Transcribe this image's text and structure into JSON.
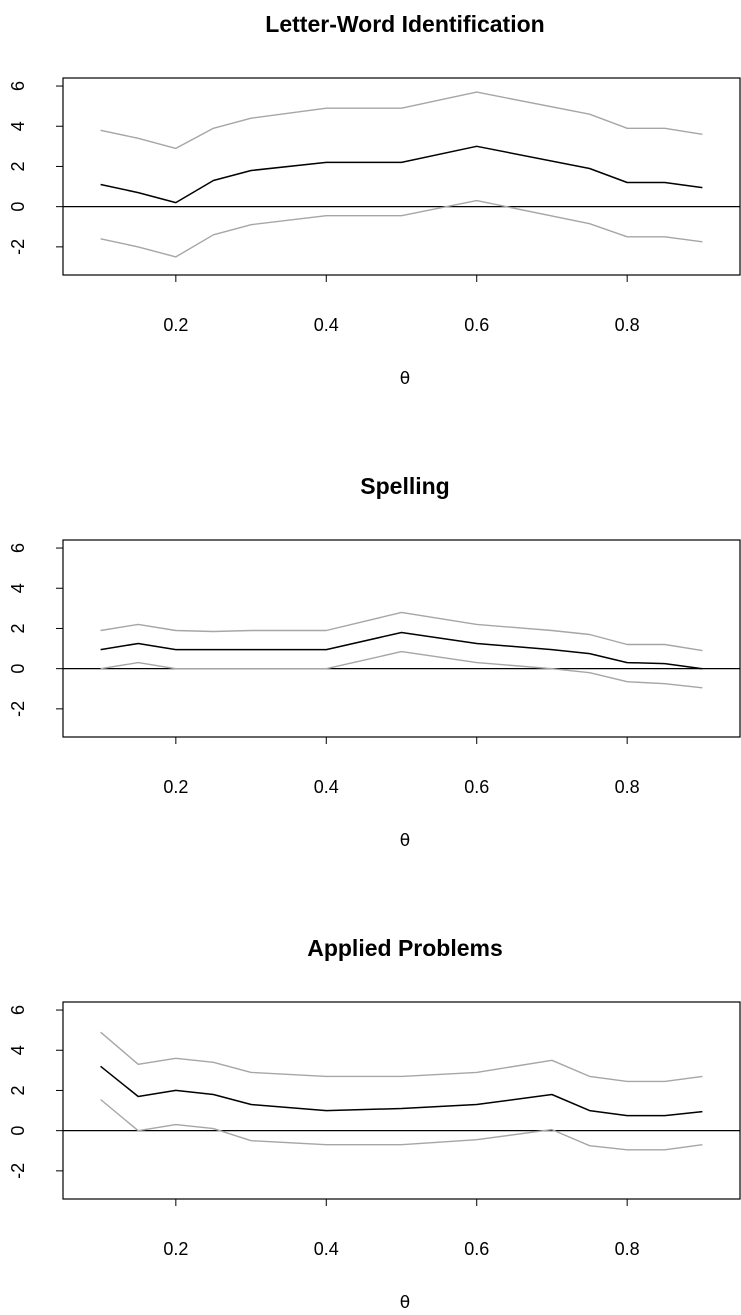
{
  "colors": {
    "estimate": "#000000",
    "band": "#a6a6a6",
    "zero_line": "#000000",
    "frame": "#000000"
  },
  "chart_data": [
    {
      "type": "line",
      "title": "Letter-Word Identification",
      "xlabel": "θ",
      "ylabel": "",
      "xlim": [
        0.05,
        0.95
      ],
      "ylim": [
        -3.4,
        6.4
      ],
      "xticks": [
        0.2,
        0.4,
        0.6,
        0.8
      ],
      "xtick_labels": [
        "0.2",
        "0.4",
        "0.6",
        "0.8"
      ],
      "yticks": [
        -2,
        0,
        2,
        4,
        6
      ],
      "ytick_labels": [
        "-2",
        "0",
        "2",
        "4",
        "6"
      ],
      "hline": 0,
      "x": [
        0.1,
        0.15,
        0.2,
        0.25,
        0.3,
        0.4,
        0.5,
        0.6,
        0.75,
        0.8,
        0.85,
        0.9
      ],
      "series": [
        {
          "role": "upper",
          "values": [
            3.8,
            3.4,
            2.9,
            3.9,
            4.4,
            4.9,
            4.9,
            5.7,
            4.6,
            3.9,
            3.9,
            3.6
          ]
        },
        {
          "role": "estimate",
          "values": [
            1.1,
            0.7,
            0.2,
            1.3,
            1.8,
            2.2,
            2.2,
            3.0,
            1.9,
            1.2,
            1.2,
            0.95
          ]
        },
        {
          "role": "lower",
          "values": [
            -1.6,
            -2.0,
            -2.5,
            -1.4,
            -0.9,
            -0.45,
            -0.45,
            0.3,
            -0.85,
            -1.5,
            -1.5,
            -1.75
          ]
        }
      ]
    },
    {
      "type": "line",
      "title": "Spelling",
      "xlabel": "θ",
      "ylabel": "",
      "xlim": [
        0.05,
        0.95
      ],
      "ylim": [
        -3.4,
        6.4
      ],
      "xticks": [
        0.2,
        0.4,
        0.6,
        0.8
      ],
      "xtick_labels": [
        "0.2",
        "0.4",
        "0.6",
        "0.8"
      ],
      "yticks": [
        -2,
        0,
        2,
        4,
        6
      ],
      "ytick_labels": [
        "-2",
        "0",
        "2",
        "4",
        "6"
      ],
      "hline": 0,
      "x": [
        0.1,
        0.15,
        0.2,
        0.25,
        0.3,
        0.4,
        0.5,
        0.6,
        0.7,
        0.75,
        0.8,
        0.85,
        0.9
      ],
      "series": [
        {
          "role": "upper",
          "values": [
            1.9,
            2.2,
            1.9,
            1.85,
            1.9,
            1.9,
            2.8,
            2.2,
            1.9,
            1.7,
            1.2,
            1.2,
            0.9
          ]
        },
        {
          "role": "estimate",
          "values": [
            0.95,
            1.25,
            0.95,
            0.95,
            0.95,
            0.95,
            1.8,
            1.25,
            0.95,
            0.75,
            0.3,
            0.25,
            0.0
          ]
        },
        {
          "role": "lower",
          "values": [
            0.0,
            0.3,
            0.0,
            0.0,
            0.0,
            0.0,
            0.85,
            0.3,
            0.0,
            -0.2,
            -0.65,
            -0.75,
            -0.95
          ]
        }
      ]
    },
    {
      "type": "line",
      "title": "Applied Problems",
      "xlabel": "θ",
      "ylabel": "",
      "xlim": [
        0.05,
        0.95
      ],
      "ylim": [
        -3.4,
        6.4
      ],
      "xticks": [
        0.2,
        0.4,
        0.6,
        0.8
      ],
      "xtick_labels": [
        "0.2",
        "0.4",
        "0.6",
        "0.8"
      ],
      "yticks": [
        -2,
        0,
        2,
        4,
        6
      ],
      "ytick_labels": [
        "-2",
        "0",
        "2",
        "4",
        "6"
      ],
      "hline": 0,
      "x": [
        0.1,
        0.15,
        0.2,
        0.25,
        0.3,
        0.4,
        0.5,
        0.6,
        0.7,
        0.75,
        0.8,
        0.85,
        0.9
      ],
      "series": [
        {
          "role": "upper",
          "values": [
            4.9,
            3.3,
            3.6,
            3.4,
            2.9,
            2.7,
            2.7,
            2.9,
            3.5,
            2.7,
            2.45,
            2.45,
            2.7
          ]
        },
        {
          "role": "estimate",
          "values": [
            3.2,
            1.7,
            2.0,
            1.8,
            1.3,
            1.0,
            1.1,
            1.3,
            1.8,
            1.0,
            0.75,
            0.75,
            0.95
          ]
        },
        {
          "role": "lower",
          "values": [
            1.55,
            0.0,
            0.3,
            0.1,
            -0.5,
            -0.7,
            -0.7,
            -0.45,
            0.05,
            -0.75,
            -0.95,
            -0.95,
            -0.7
          ]
        }
      ]
    }
  ]
}
